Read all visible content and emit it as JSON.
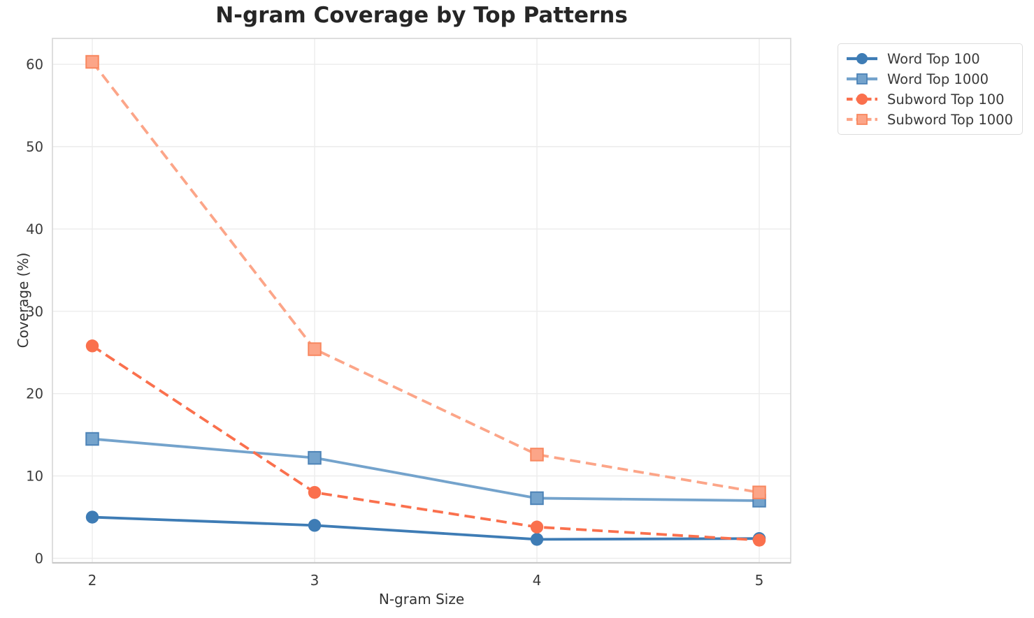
{
  "title": "N-gram Coverage by Top Patterns",
  "chart_data": {
    "type": "line",
    "title": "N-gram Coverage by Top Patterns",
    "xlabel": "N-gram Size",
    "ylabel": "Coverage (%)",
    "x": [
      2,
      3,
      4,
      5
    ],
    "xtick_labels": [
      "2",
      "3",
      "4",
      "5"
    ],
    "yticks": [
      0,
      10,
      20,
      30,
      40,
      50,
      60
    ],
    "ylim": [
      0,
      63
    ],
    "grid": true,
    "legend_position": "outside upper right",
    "series": [
      {
        "name": "Word Top 100",
        "values": [
          5.0,
          4.0,
          2.3,
          2.4
        ],
        "color": "#3E7CB5",
        "marker": "circle",
        "line_style": "solid",
        "marker_edge": "#3E7CB5"
      },
      {
        "name": "Word Top 1000",
        "values": [
          14.5,
          12.2,
          7.3,
          7.0
        ],
        "color": "#74A3CC",
        "marker": "square",
        "line_style": "solid",
        "marker_edge": "#4D83B7"
      },
      {
        "name": "Subword Top 100",
        "values": [
          25.8,
          8.0,
          3.8,
          2.2
        ],
        "color": "#FA704D",
        "marker": "circle",
        "line_style": "dashed",
        "marker_edge": "#FA704D"
      },
      {
        "name": "Subword Top 1000",
        "values": [
          60.3,
          25.4,
          12.6,
          8.0
        ],
        "color": "#FCA588",
        "marker": "square",
        "line_style": "dashed",
        "marker_edge": "#F8875F"
      }
    ]
  },
  "colors": {
    "grid": "#ECECEC",
    "spine": "#D6D6D6",
    "bottom_spine": "#C9C9C9",
    "tick_text": "#3B3B3B",
    "title_text": "#262626",
    "background": "#FFFFFF"
  }
}
